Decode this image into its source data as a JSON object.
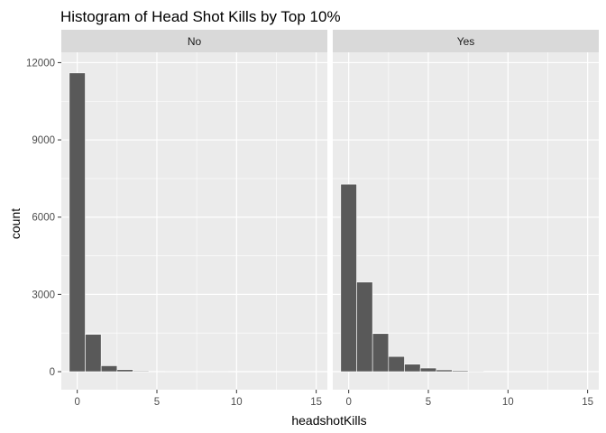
{
  "chart_data": {
    "type": "bar",
    "title": "Histogram of Head Shot Kills by Top 10%",
    "xlabel": "headshotKills",
    "ylabel": "count",
    "xlim": [
      -1,
      15.7
    ],
    "ylim": [
      -700,
      12400
    ],
    "x_ticks": [
      0,
      5,
      10,
      15
    ],
    "y_ticks": [
      0,
      3000,
      6000,
      9000,
      12000
    ],
    "x_tick_labels": [
      "0",
      "5",
      "10",
      "15"
    ],
    "y_tick_labels": [
      "0",
      "3000",
      "6000",
      "9000",
      "12000"
    ],
    "bin_width": 1,
    "grid": true,
    "facets": [
      {
        "label": "No",
        "bins": [
          0,
          1,
          2,
          3,
          4,
          5,
          6,
          7,
          8,
          9
        ],
        "counts": [
          11600,
          1450,
          230,
          80,
          30,
          8,
          3,
          2,
          1,
          1
        ]
      },
      {
        "label": "Yes",
        "bins": [
          0,
          1,
          2,
          3,
          4,
          5,
          6,
          7,
          8,
          9
        ],
        "counts": [
          7280,
          3480,
          1480,
          590,
          290,
          140,
          70,
          40,
          25,
          15
        ]
      }
    ],
    "colors": {
      "bar": "#595959",
      "panel": "#ebebeb",
      "strip": "#d9d9d9",
      "grid": "#ffffff"
    }
  }
}
